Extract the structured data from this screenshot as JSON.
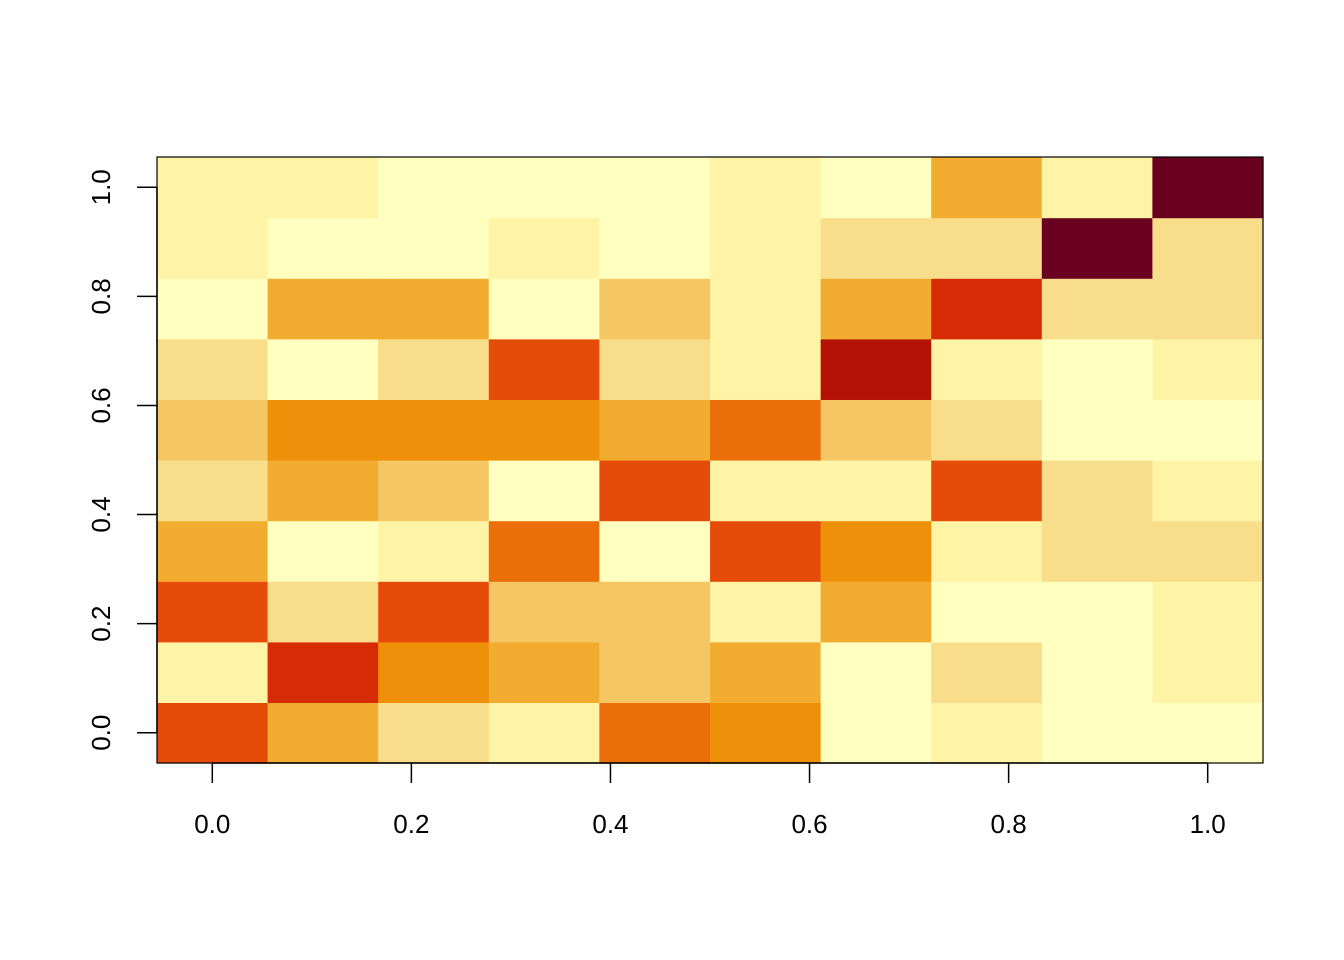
{
  "chart_data": {
    "type": "heatmap",
    "title": "",
    "xlabel": "",
    "ylabel": "",
    "xlim": [
      -0.05556,
      1.05556
    ],
    "ylim": [
      -0.05556,
      1.05556
    ],
    "x_ticks": [
      0,
      0.2,
      0.4,
      0.6,
      0.8,
      1.0
    ],
    "x_tick_labels": [
      "0.0",
      "0.2",
      "0.4",
      "0.6",
      "0.8",
      "1.0"
    ],
    "y_ticks": [
      0,
      0.2,
      0.4,
      0.6,
      0.8,
      1.0
    ],
    "y_tick_labels": [
      "0.0",
      "0.2",
      "0.4",
      "0.6",
      "0.8",
      "1.0"
    ],
    "x": [
      0,
      0.1111,
      0.2222,
      0.3333,
      0.4444,
      0.5556,
      0.6667,
      0.7778,
      0.8889,
      1.0
    ],
    "y": [
      0,
      0.1111,
      0.2222,
      0.3333,
      0.4444,
      0.5556,
      0.6667,
      0.7778,
      0.8889,
      1.0
    ],
    "palette": [
      "#FFFFBF",
      "#FFF3A6",
      "#F8DE8B",
      "#F4C764",
      "#F2AD31",
      "#EF900A",
      "#EA6E09",
      "#E54C09",
      "#D72B06",
      "#B51206",
      "#6A001F"
    ],
    "z": [
      [
        7,
        4,
        2,
        1,
        6,
        5,
        0,
        1,
        0,
        0
      ],
      [
        1,
        8,
        5,
        4,
        3,
        4,
        0,
        2,
        0,
        1
      ],
      [
        7,
        2,
        7,
        3,
        3,
        1,
        4,
        0,
        0,
        1
      ],
      [
        4,
        0,
        1,
        6,
        0,
        7,
        5,
        1,
        2,
        2
      ],
      [
        2,
        4,
        3,
        0,
        7,
        1,
        1,
        7,
        2,
        1
      ],
      [
        3,
        5,
        5,
        5,
        4,
        6,
        3,
        2,
        0,
        0
      ],
      [
        2,
        0,
        2,
        7,
        2,
        1,
        9,
        1,
        0,
        1
      ],
      [
        0,
        4,
        4,
        0,
        3,
        1,
        4,
        8,
        2,
        2
      ],
      [
        1,
        0,
        0,
        1,
        0,
        1,
        2,
        2,
        10,
        2
      ],
      [
        1,
        1,
        0,
        0,
        0,
        1,
        0,
        4,
        1,
        10
      ]
    ]
  }
}
